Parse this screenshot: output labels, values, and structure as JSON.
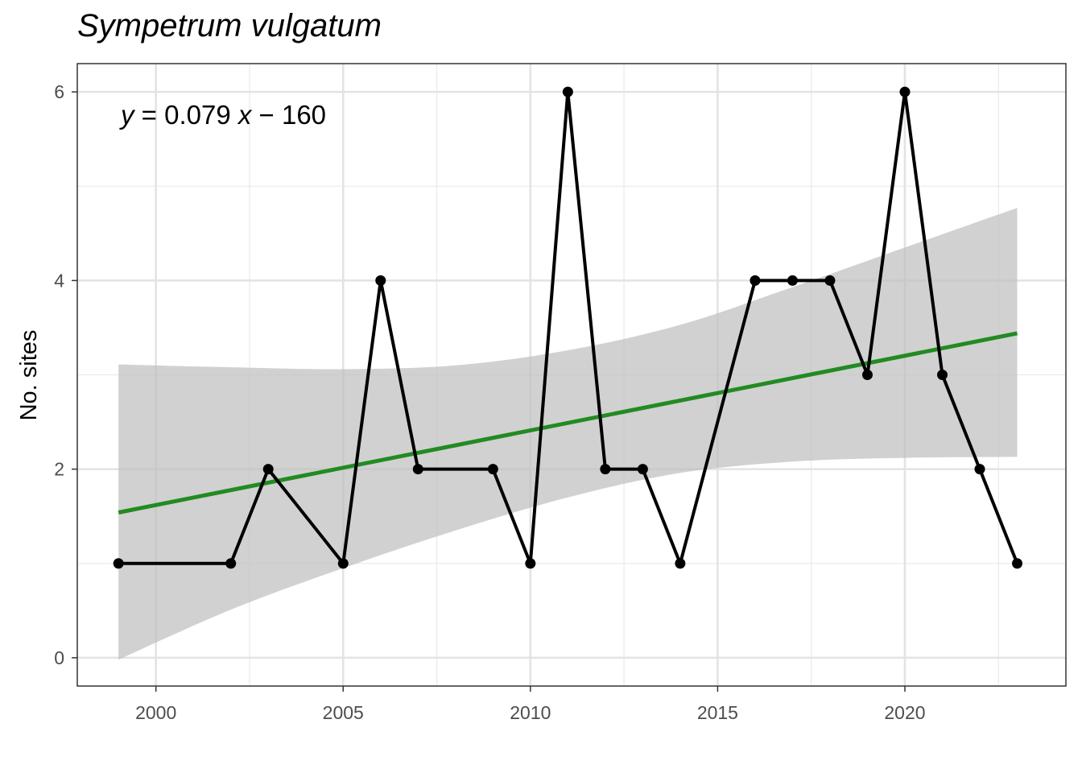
{
  "chart_data": {
    "type": "line",
    "title": "Sympetrum vulgatum",
    "xlabel": "",
    "ylabel": "No. sites",
    "xlim": [
      1997.9,
      2024.3
    ],
    "ylim": [
      -0.3,
      6.3
    ],
    "x_ticks": [
      2000,
      2005,
      2010,
      2015,
      2020
    ],
    "y_ticks": [
      0,
      2,
      4,
      6
    ],
    "x_tick_labels": [
      "2000",
      "2005",
      "2010",
      "2015",
      "2020"
    ],
    "y_tick_labels": [
      "0",
      "2",
      "4",
      "6"
    ],
    "grid": true,
    "series": [
      {
        "x": [
          1999,
          2002,
          2003,
          2005,
          2006,
          2007,
          2009,
          2010,
          2011,
          2012,
          2013,
          2014,
          2016,
          2017,
          2018,
          2019,
          2020,
          2021,
          2022,
          2023
        ],
        "values": [
          1,
          1,
          2,
          1,
          4,
          2,
          2,
          1,
          6,
          2,
          2,
          1,
          4,
          4,
          4,
          3,
          6,
          3,
          2,
          1
        ],
        "color": "#000000"
      }
    ],
    "trend": {
      "equation_label": "y = 0.079 x − 160",
      "color": "#228B22",
      "x_range": [
        1999,
        2023
      ],
      "fit_values": [
        1.54,
        3.44
      ],
      "ci_x": [
        1999,
        2002,
        2005,
        2008,
        2011,
        2014,
        2017,
        2020,
        2023
      ],
      "ci_lower": [
        -0.02,
        0.51,
        0.95,
        1.35,
        1.7,
        1.96,
        2.08,
        2.12,
        2.13
      ],
      "ci_upper": [
        3.11,
        3.08,
        3.06,
        3.1,
        3.26,
        3.53,
        3.93,
        4.35,
        4.77
      ],
      "ci_color": "#bfbfbf"
    }
  }
}
